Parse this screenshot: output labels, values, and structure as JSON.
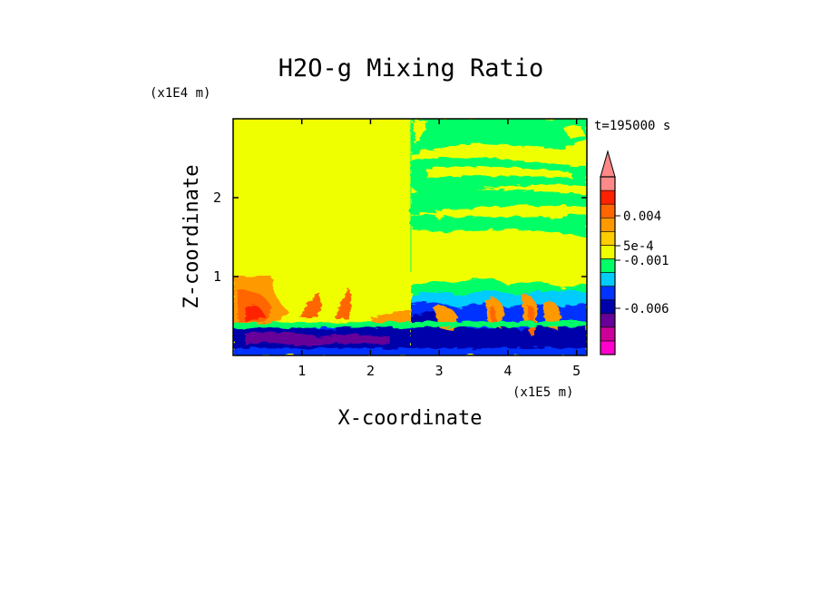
{
  "chart_data": {
    "type": "heatmap",
    "title": "H2O-g Mixing Ratio",
    "xlabel": "X-coordinate",
    "ylabel": "Z-coordinate",
    "x_unit": "(x1E5 m)",
    "y_unit": "(x1E4 m)",
    "time_label": "t=195000 s",
    "xlim": [
      0,
      5.15
    ],
    "ylim": [
      0,
      3
    ],
    "x_ticks": [
      1,
      2,
      3,
      4,
      5
    ],
    "y_ticks": [
      1,
      2
    ],
    "x_tick_labels": [
      "1",
      "2",
      "3",
      "4",
      "5"
    ],
    "y_tick_labels": [
      "1",
      "2"
    ],
    "colorbar": {
      "colors": [
        "#ff00cc",
        "#cc0099",
        "#660099",
        "#0000aa",
        "#0033ff",
        "#00ccff",
        "#00ff66",
        "#f0ff00",
        "#ffcc00",
        "#ff9900",
        "#ff6600",
        "#ff2200",
        "#ff8888"
      ],
      "extend_color": "#ff8888",
      "labels": [
        {
          "text": "0.004",
          "value": 0.004
        },
        {
          "text": "5e-4",
          "value": 0.0005
        },
        {
          "text": "-0.001",
          "value": -0.001
        },
        {
          "text": "-0.006",
          "value": -0.006
        }
      ]
    },
    "field_regions": [
      {
        "name": "background",
        "level": 0.0,
        "color": "#f0ff00"
      },
      {
        "name": "upper-right-moist-band",
        "level": -0.0005,
        "color": "#00ff66"
      },
      {
        "name": "lower-left-plume",
        "level": 0.003,
        "color": "#ff9900"
      },
      {
        "name": "boundary-layer-dry",
        "level": -0.006,
        "color": "#0000aa"
      }
    ]
  }
}
